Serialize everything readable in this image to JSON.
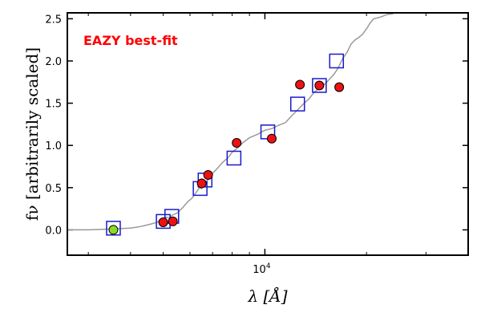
{
  "chart_data": {
    "type": "scatter",
    "title": "",
    "xlabel": "λ [Å]",
    "ylabel": "fν [arbitrarily scaled]",
    "xscale": "log",
    "xlim": [
      2600,
      40000
    ],
    "ylim": [
      -0.3,
      2.57
    ],
    "yticks": [
      0.0,
      0.5,
      1.0,
      1.5,
      2.0,
      2.5
    ],
    "ytick_labels": [
      "0.0",
      "0.5",
      "1.0",
      "1.5",
      "2.0",
      "2.5"
    ],
    "xtick_major": [
      {
        "value": 10000,
        "base": "10",
        "exp": "4"
      }
    ],
    "xtick_minor": [
      3000,
      4000,
      5000,
      6000,
      7000,
      8000,
      9000,
      20000,
      30000,
      40000
    ],
    "grid": false,
    "annotation": {
      "text": "EAZY best-fit",
      "color": "#ff0000"
    },
    "colors": {
      "model_line": "#999999",
      "model_box": "#1a1acc",
      "observed": "#ee1111",
      "observed_special": "#88dd22"
    },
    "series": [
      {
        "role": "model-spectrum",
        "style": "line",
        "points": [
          [
            2600,
            0.0
          ],
          [
            3000,
            0.0
          ],
          [
            3500,
            0.01
          ],
          [
            4000,
            0.02
          ],
          [
            4300,
            0.04
          ],
          [
            4600,
            0.07
          ],
          [
            4800,
            0.09
          ],
          [
            4900,
            0.12
          ],
          [
            5000,
            0.11
          ],
          [
            5100,
            0.15
          ],
          [
            5200,
            0.14
          ],
          [
            5300,
            0.17
          ],
          [
            5500,
            0.2
          ],
          [
            5700,
            0.26
          ],
          [
            5900,
            0.33
          ],
          [
            6100,
            0.38
          ],
          [
            6300,
            0.46
          ],
          [
            6400,
            0.5
          ],
          [
            6500,
            0.49
          ],
          [
            6600,
            0.53
          ],
          [
            6800,
            0.6
          ],
          [
            7000,
            0.67
          ],
          [
            7200,
            0.72
          ],
          [
            7500,
            0.8
          ],
          [
            7800,
            0.86
          ],
          [
            8000,
            0.92
          ],
          [
            8300,
            0.97
          ],
          [
            8600,
            1.03
          ],
          [
            9000,
            1.09
          ],
          [
            9500,
            1.13
          ],
          [
            10000,
            1.18
          ],
          [
            10500,
            1.2
          ],
          [
            11000,
            1.24
          ],
          [
            11500,
            1.27
          ],
          [
            12000,
            1.35
          ],
          [
            12500,
            1.42
          ],
          [
            13000,
            1.49
          ],
          [
            13500,
            1.55
          ],
          [
            14000,
            1.63
          ],
          [
            14500,
            1.68
          ],
          [
            15000,
            1.72
          ],
          [
            15500,
            1.78
          ],
          [
            16000,
            1.84
          ],
          [
            16500,
            1.92
          ],
          [
            17000,
            2.03
          ],
          [
            17500,
            2.1
          ],
          [
            18000,
            2.2
          ],
          [
            18500,
            2.25
          ],
          [
            19000,
            2.28
          ],
          [
            19500,
            2.32
          ],
          [
            20000,
            2.38
          ],
          [
            20500,
            2.45
          ],
          [
            21000,
            2.5
          ],
          [
            22000,
            2.52
          ],
          [
            23000,
            2.55
          ],
          [
            24000,
            2.56
          ]
        ]
      },
      {
        "role": "model-photometry",
        "style": "open-square",
        "points": [
          [
            3560,
            0.02
          ],
          [
            5000,
            0.1
          ],
          [
            5300,
            0.16
          ],
          [
            6430,
            0.49
          ],
          [
            6650,
            0.59
          ],
          [
            8100,
            0.85
          ],
          [
            10200,
            1.16
          ],
          [
            12500,
            1.49
          ],
          [
            14500,
            1.71
          ],
          [
            16300,
            2.0
          ]
        ]
      },
      {
        "role": "observed-photometry",
        "style": "filled-circle",
        "points": [
          [
            3560,
            0.0
          ],
          [
            5000,
            0.09
          ],
          [
            5340,
            0.1
          ],
          [
            6500,
            0.55
          ],
          [
            6790,
            0.65
          ],
          [
            8250,
            1.03
          ],
          [
            10480,
            1.08
          ],
          [
            12700,
            1.72
          ],
          [
            14500,
            1.71
          ],
          [
            16600,
            1.69
          ]
        ],
        "special_first": true
      }
    ]
  }
}
